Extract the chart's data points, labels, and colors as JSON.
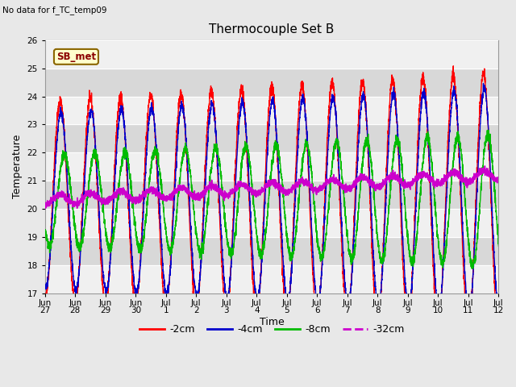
{
  "title": "Thermocouple Set B",
  "note": "No data for f_TC_temp09",
  "ylabel": "Temperature",
  "xlabel": "Time",
  "legend_label": "SB_met",
  "ylim": [
    17.0,
    26.0
  ],
  "yticks": [
    17.0,
    18.0,
    19.0,
    20.0,
    21.0,
    22.0,
    23.0,
    24.0,
    25.0,
    26.0
  ],
  "xtick_labels": [
    "Jun\n27",
    "Jun\n28",
    "Jun\n29",
    "Jun\n30",
    "Jul\n1",
    "Jul\n2",
    "Jul\n3",
    "Jul\n4",
    "Jul\n5",
    "Jul\n6",
    "Jul\n7",
    "Jul\n8",
    "Jul\n9",
    "Jul\n10",
    "Jul\n11",
    "Jul\n12"
  ],
  "line_colors": [
    "#ff0000",
    "#0000cc",
    "#00bb00",
    "#cc00cc"
  ],
  "line_labels": [
    "-2cm",
    "-4cm",
    "-8cm",
    "-32cm"
  ],
  "bg_color": "#e8e8e8",
  "plot_bg": "#d8d8d8",
  "stripe_color": "#f0f0f0",
  "n_points": 4000,
  "start_day": 0,
  "end_day": 15,
  "base_temp": 20.3,
  "amplitudes": [
    3.5,
    3.1,
    1.6,
    0.18
  ],
  "phase_shifts_rad": [
    0.0,
    0.15,
    0.9,
    0.0
  ],
  "amp_growth": [
    0.07,
    0.06,
    0.05,
    0.0
  ],
  "base_drift": [
    0.0,
    0.0,
    0.0,
    0.06
  ],
  "noise_levels": [
    0.1,
    0.08,
    0.1,
    0.06
  ],
  "period_hours": 24,
  "figsize": [
    6.4,
    4.8
  ],
  "dpi": 100
}
